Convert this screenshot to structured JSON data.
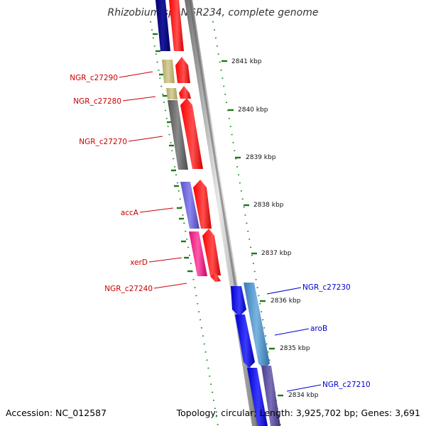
{
  "title": "Rhizobium sp. NGR234, complete genome",
  "footer": {
    "accession": "Accession: NC_012587",
    "summary": "Topology: circular; Length: 3,925,702 bp; Genes: 3,691"
  },
  "colors": {
    "forward_label": "#cc0000",
    "reverse_label": "#0000cc",
    "tick": "#1a7a1a",
    "backbone": "#8a8a8a"
  },
  "ticks": [
    "2841 kbp",
    "2840 kbp",
    "2839 kbp",
    "2838 kbp",
    "2837 kbp",
    "2836 kbp",
    "2835 kbp",
    "2834 kbp"
  ],
  "genes_left": [
    "NGR_c27290",
    "NGR_c27280",
    "NGR_c27270",
    "accA",
    "xerD",
    "NGR_c27240"
  ],
  "genes_right": [
    "NGR_c27230",
    "aroB",
    "NGR_c27210"
  ]
}
